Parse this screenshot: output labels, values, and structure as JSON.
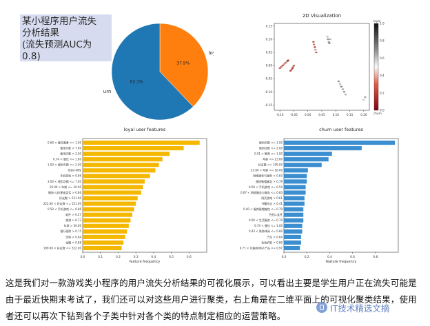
{
  "title_box": {
    "text": "某小程序用户流失\n分析结果\n(流失预测AUC为\n0.8)"
  },
  "caption": {
    "text": "这是我们对一款游戏类小程序的用户流失分析结果的可视化展示，可以看出主要是学生用户正在流失可能是由于最近快期末考试了，我们还可以对这些用户进行聚类，右上角是在二维平面上的可视化聚类结果，使用者还可以再次下钻到各个子类中针对各个类的特点制定相应的运营策略。"
  },
  "watermark": {
    "text": "IT技术精选文摘",
    "icon": "wechat-logo-icon"
  },
  "colors": {
    "loyal": "#ff7f0e",
    "churn": "#1f77b4",
    "loyal_bars": "#f5b800",
    "churn_bars": "#3b8ed0",
    "title_box_bg": "#d7dbef"
  },
  "chart_data": [
    {
      "type": "pie",
      "title": "",
      "slices": [
        {
          "label": "loyal",
          "value": 37.9,
          "pct_label": "37.9%"
        },
        {
          "label": "churn",
          "value": 62.1,
          "pct_label": "62.1%"
        }
      ]
    },
    {
      "type": "scatter",
      "title": "2D Visualization",
      "xlim": [
        -0.12,
        0.22
      ],
      "ylim": [
        -0.17,
        0.16
      ],
      "xticks": [
        "-0.10",
        "-0.05",
        "0.00",
        "0.05",
        "0.10",
        "0.15",
        "0.20"
      ],
      "yticks": [
        "0.15",
        "0.10",
        "0.05",
        "0.00",
        "-0.05",
        "-0.10",
        "-0.15"
      ],
      "colorbar": {
        "label_top": "loyal",
        "label_bottom": "churn",
        "ticks": [
          "1.0",
          "0.8",
          "0.6",
          "0.4",
          "0.2",
          "0.0"
        ]
      },
      "points": [
        {
          "x": -0.1,
          "y": -0.01,
          "v": 0.25
        },
        {
          "x": -0.095,
          "y": -0.005,
          "v": 0.3
        },
        {
          "x": -0.09,
          "y": 0.0,
          "v": 0.2
        },
        {
          "x": -0.085,
          "y": 0.005,
          "v": 0.35
        },
        {
          "x": -0.08,
          "y": 0.01,
          "v": 0.25
        },
        {
          "x": -0.075,
          "y": 0.015,
          "v": 0.4
        },
        {
          "x": -0.07,
          "y": 0.02,
          "v": 0.3
        },
        {
          "x": -0.072,
          "y": 0.018,
          "v": 0.1
        },
        {
          "x": -0.062,
          "y": -0.02,
          "v": 0.2
        },
        {
          "x": -0.058,
          "y": -0.015,
          "v": 0.3
        },
        {
          "x": -0.055,
          "y": -0.01,
          "v": 0.15
        },
        {
          "x": -0.052,
          "y": -0.005,
          "v": 0.35
        },
        {
          "x": -0.05,
          "y": 0.0,
          "v": 0.25
        },
        {
          "x": 0.02,
          "y": 0.09,
          "v": 0.2
        },
        {
          "x": 0.022,
          "y": 0.08,
          "v": 0.3
        },
        {
          "x": 0.025,
          "y": 0.07,
          "v": 0.15
        },
        {
          "x": 0.027,
          "y": 0.06,
          "v": 0.35
        },
        {
          "x": 0.03,
          "y": 0.05,
          "v": 0.25
        },
        {
          "x": 0.07,
          "y": 0.11,
          "v": 0.6
        },
        {
          "x": 0.072,
          "y": 0.1,
          "v": 0.7
        },
        {
          "x": 0.075,
          "y": 0.09,
          "v": 0.65
        },
        {
          "x": 0.077,
          "y": 0.085,
          "v": 0.75
        },
        {
          "x": 0.08,
          "y": 0.1,
          "v": 0.62
        },
        {
          "x": 0.11,
          "y": -0.06,
          "v": 0.7
        },
        {
          "x": 0.115,
          "y": -0.07,
          "v": 0.6
        },
        {
          "x": 0.12,
          "y": -0.08,
          "v": 0.75
        },
        {
          "x": 0.125,
          "y": -0.09,
          "v": 0.65
        },
        {
          "x": 0.13,
          "y": -0.1,
          "v": 0.7
        },
        {
          "x": 0.135,
          "y": -0.11,
          "v": 0.62
        },
        {
          "x": 0.2,
          "y": -0.13,
          "v": 0.55
        },
        {
          "x": 0.205,
          "y": -0.12,
          "v": 0.65
        }
      ]
    },
    {
      "type": "bar",
      "orientation": "horizontal",
      "title": "loyal user features",
      "xlabel": "feature frequency",
      "xlim": [
        0,
        0.7
      ],
      "xticks": [
        "0.0",
        "0.1",
        "0.2",
        "0.3",
        "0.4",
        "0.5",
        "0.6"
      ],
      "categories": [
        "0.60 < 餐饮美食 <= 1.00",
        "使用天数 > 7.00",
        "使用天数 > 2.00",
        "0.74 < 餐饮 <= 1.00",
        "1.00 < 使用天数 <= 2.00",
        "性别=男性",
        "手机游戏 > 0.86",
        "3.00 < 使用次数 <= 7.00",
        "26.00 < 年龄 <= 30.00",
        "服饰八卦/星座笑话 > 0.86",
        "好友数 > 521.00",
        "222.00 < 好友数 <= 521.00",
        "0.50 < 手机游戏 <= 0.86",
        "软件 > 0.57",
        "旅游 > 0.73",
        "年龄 > 30.00",
        "银行理财 > 0.75",
        "饮料 > 0.64",
        "金融 > 0.88",
        "199.00 < 好友数 <= 322.00"
      ],
      "values": [
        0.66,
        0.57,
        0.49,
        0.45,
        0.43,
        0.41,
        0.38,
        0.35,
        0.34,
        0.33,
        0.31,
        0.3,
        0.29,
        0.28,
        0.27,
        0.26,
        0.25,
        0.24,
        0.23,
        0.22
      ]
    },
    {
      "type": "bar",
      "orientation": "horizontal",
      "title": "churn user features",
      "xlabel": "feature frequency",
      "xlim": [
        0,
        1.0
      ],
      "xticks": [
        "0.0",
        "0.2",
        "0.4",
        "0.6",
        "0.8"
      ],
      "categories": [
        "使用天数 <= 1.00",
        "使用次数 <= 2.00",
        "0.01 < 教育 <= 1.00",
        "年龄 <= 23.00",
        "好友数 <= 199.00",
        "23.00 < 年龄 <= 26.00",
        "网络服务与服务 > 0.83",
        "服饰鞋帽箱包 > 0.79",
        "0.00 < 手机游戏 <= 0.50",
        "0.67 < 网络服务与服务 <= 0.83",
        "网页游戏 > 0.61",
        "书籍杂志 > 0.41",
        "0.40 < 服饰鞋帽箱包 <= 0.79",
        "性别=女性",
        "0.00 < 生活服务 <= 0.70",
        "0.74 < 餐饮 <= 1.00",
        "0.43 < 装饰休闲 <= 0.80",
        "汽车 > 0.64",
        "化妆护肤 > 0.80",
        "0.77 < 互联网/电子产品 <= 0.97"
      ],
      "values": [
        0.97,
        0.68,
        0.42,
        0.39,
        0.33,
        0.21,
        0.2,
        0.2,
        0.19,
        0.19,
        0.18,
        0.18,
        0.17,
        0.17,
        0.17,
        0.16,
        0.16,
        0.15,
        0.15,
        0.14
      ]
    }
  ]
}
